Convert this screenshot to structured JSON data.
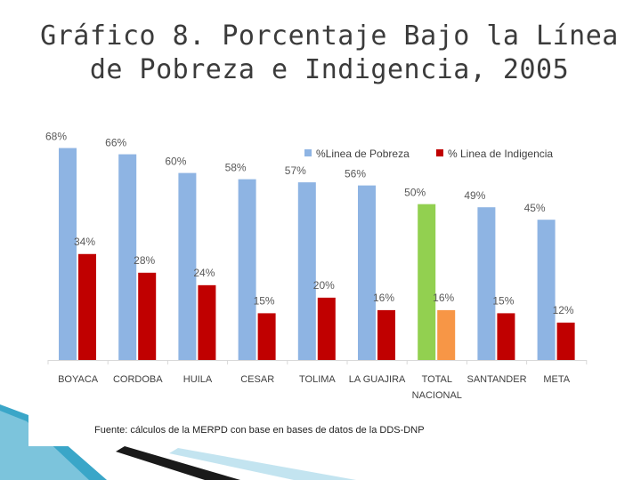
{
  "slide": {
    "title_line1": "Gráfico 8. Porcentaje Bajo la Línea",
    "title_line2": "de Pobreza e Indigencia, 2005"
  },
  "chart_data": {
    "type": "bar",
    "title": "",
    "xlabel": "",
    "ylabel": "",
    "ylim": [
      0,
      75
    ],
    "grid": false,
    "legend_position": "top",
    "categories": [
      "BOYACA",
      "CORDOBA",
      "HUILA",
      "CESAR",
      "TOLIMA",
      "LA GUAJIRA",
      "TOTAL NACIONAL",
      "SANTANDER",
      "META"
    ],
    "series": [
      {
        "name": "%Linea de Pobreza",
        "color": "#8eb4e3",
        "highlight_color": "#92d050",
        "values": [
          68,
          66,
          60,
          58,
          57,
          56,
          50,
          49,
          45
        ],
        "labels": [
          "68%",
          "66%",
          "60%",
          "58%",
          "57%",
          "56%",
          "50%",
          "49%",
          "45%"
        ]
      },
      {
        "name": "% Linea de Indigencia",
        "color": "#c00000",
        "highlight_color": "#f79646",
        "values": [
          34,
          28,
          24,
          15,
          20,
          16,
          16,
          15,
          12
        ],
        "labels": [
          "34%",
          "28%",
          "24%",
          "15%",
          "20%",
          "16%",
          "16%",
          "15%",
          "12%"
        ]
      }
    ],
    "highlight_category": "TOTAL NACIONAL",
    "source": "Fuente: cálculos de la MERPD con base en bases de datos de la DDS-DNP"
  },
  "colors": {
    "axis": "#d9d9d9",
    "ribbon_blue": "#3aa6c8",
    "ribbon_light": "#a9d8ea",
    "ribbon_dark": "#1a1a1a"
  }
}
